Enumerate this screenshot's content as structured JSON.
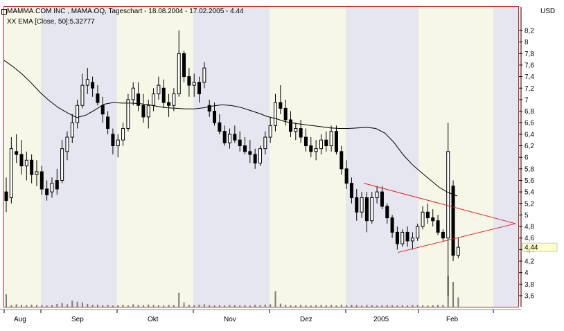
{
  "window": {
    "title_line_1": "MAMMA.COM INC    , MAMA.OQ, Tageschart - 18.08.2004 - 17.02.2005 - 4.44",
    "title_line_2": "XX EMA [Close, 50]:5.32777",
    "currency": "USD"
  },
  "colors": {
    "frame": "#d01a1a",
    "band_grey": "#e6e6f0",
    "band_cream": "#f6f7e6",
    "candle": "#000000",
    "ema": "#000000",
    "trendline": "#e02020",
    "volume": "#7a7a7a",
    "last_price_box": "#ffffcc"
  },
  "chart_data": {
    "type": "candlestick",
    "title": "MAMMA.COM INC    , MAMA.OQ, Tageschart - 18.08.2004 - 17.02.2005 - 4.44",
    "ylabel": "USD",
    "ylim": [
      3.45,
      8.45
    ],
    "y_ticks": [
      3.6,
      3.8,
      4,
      4.2,
      4.4,
      4.6,
      4.8,
      5,
      5.2,
      5.4,
      5.6,
      5.8,
      6,
      6.2,
      6.4,
      6.6,
      6.8,
      7,
      7.2,
      7.4,
      7.6,
      7.8,
      8,
      8.2
    ],
    "y_tick_labels": [
      "3,6",
      "3,8",
      "4",
      "4,2",
      "4,4",
      "4,6",
      "4,8",
      "5",
      "5,2",
      "5,4",
      "5,6",
      "5,8",
      "6",
      "6,2",
      "6,4",
      "6,6",
      "6,8",
      "7",
      "7,2",
      "7,4",
      "7,6",
      "7,8",
      "8",
      "8,2"
    ],
    "x_labels": [
      {
        "label": "Aug",
        "date": "2004-08-18"
      },
      {
        "label": "Sep",
        "date": "2004-09-01"
      },
      {
        "label": "Okt",
        "date": "2004-10-01"
      },
      {
        "label": "Nov",
        "date": "2004-11-01"
      },
      {
        "label": "Dez",
        "date": "2004-12-01"
      },
      {
        "label": "2005",
        "date": "2005-01-01"
      },
      {
        "label": "Feb",
        "date": "2005-02-01"
      }
    ],
    "last_price": 4.44,
    "last_price_label": "4,44",
    "ema_label": "XX EMA [Close, 50]:5.32777",
    "ema_last": 5.32777,
    "grid": false,
    "legend": "none",
    "series": [
      {
        "type": "ohlc",
        "ohlc": [
          [
            5.4,
            5.65,
            5.05,
            5.25
          ],
          [
            5.3,
            6.35,
            5.2,
            6.15
          ],
          [
            6.1,
            6.4,
            5.9,
            6.05
          ],
          [
            6.05,
            6.3,
            5.7,
            5.85
          ],
          [
            5.85,
            6.1,
            5.6,
            5.95
          ],
          [
            5.95,
            6.05,
            5.55,
            5.7
          ],
          [
            5.7,
            5.95,
            5.5,
            5.75
          ],
          [
            5.75,
            5.85,
            5.35,
            5.45
          ],
          [
            5.45,
            5.6,
            5.25,
            5.35
          ],
          [
            5.4,
            5.65,
            5.3,
            5.55
          ],
          [
            5.6,
            5.8,
            5.35,
            5.45
          ],
          [
            5.6,
            6.3,
            5.55,
            6.15
          ],
          [
            6.1,
            6.45,
            5.95,
            6.35
          ],
          [
            6.35,
            6.75,
            6.25,
            6.6
          ],
          [
            6.6,
            7.0,
            6.5,
            6.9
          ],
          [
            6.9,
            7.45,
            6.85,
            7.25
          ],
          [
            7.25,
            7.55,
            7.1,
            7.35
          ],
          [
            7.3,
            7.4,
            7.05,
            7.2
          ],
          [
            7.1,
            7.25,
            6.9,
            6.95
          ],
          [
            6.9,
            7.05,
            6.6,
            6.75
          ],
          [
            6.7,
            6.8,
            6.4,
            6.5
          ],
          [
            6.4,
            6.5,
            6.05,
            6.2
          ],
          [
            6.2,
            6.4,
            6.0,
            6.3
          ],
          [
            6.3,
            6.6,
            6.2,
            6.5
          ],
          [
            6.5,
            7.1,
            6.45,
            7.0
          ],
          [
            7.0,
            7.3,
            6.9,
            7.2
          ],
          [
            7.1,
            7.3,
            6.8,
            6.9
          ],
          [
            6.9,
            7.1,
            6.6,
            6.7
          ],
          [
            6.7,
            7.0,
            6.5,
            6.9
          ],
          [
            6.9,
            7.2,
            6.8,
            7.1
          ],
          [
            7.1,
            7.4,
            7.0,
            7.25
          ],
          [
            7.2,
            7.35,
            6.85,
            6.95
          ],
          [
            6.95,
            7.1,
            6.7,
            6.9
          ],
          [
            6.9,
            7.2,
            6.8,
            7.1
          ],
          [
            7.1,
            8.2,
            7.05,
            7.8
          ],
          [
            7.8,
            7.85,
            7.3,
            7.4
          ],
          [
            7.4,
            7.55,
            7.05,
            7.25
          ],
          [
            7.25,
            7.45,
            7.05,
            7.3
          ],
          [
            7.3,
            7.4,
            6.95,
            7.1
          ],
          [
            7.3,
            7.65,
            7.2,
            7.55
          ],
          [
            6.9,
            7.0,
            6.7,
            6.8
          ],
          [
            6.8,
            6.95,
            6.55,
            6.6
          ],
          [
            6.6,
            6.75,
            6.4,
            6.45
          ],
          [
            6.45,
            6.55,
            6.2,
            6.25
          ],
          [
            6.25,
            6.5,
            6.15,
            6.4
          ],
          [
            6.4,
            6.55,
            6.25,
            6.3
          ],
          [
            6.3,
            6.45,
            6.1,
            6.2
          ],
          [
            6.2,
            6.35,
            6.05,
            6.1
          ],
          [
            6.1,
            6.3,
            5.9,
            6.05
          ],
          [
            6.05,
            6.15,
            5.8,
            5.9
          ],
          [
            5.9,
            6.2,
            5.85,
            6.15
          ],
          [
            6.15,
            6.45,
            6.05,
            6.35
          ],
          [
            6.35,
            6.7,
            6.25,
            6.55
          ],
          [
            6.55,
            7.1,
            6.45,
            6.95
          ],
          [
            6.95,
            7.25,
            6.75,
            6.85
          ],
          [
            6.85,
            7.0,
            6.55,
            6.65
          ],
          [
            6.65,
            6.8,
            6.35,
            6.45
          ],
          [
            6.45,
            6.6,
            6.3,
            6.5
          ],
          [
            6.5,
            6.65,
            6.25,
            6.35
          ],
          [
            6.35,
            6.5,
            6.1,
            6.2
          ],
          [
            6.2,
            6.35,
            6.0,
            6.1
          ],
          [
            6.1,
            6.3,
            5.95,
            6.15
          ],
          [
            6.15,
            6.4,
            6.05,
            6.3
          ],
          [
            6.3,
            6.45,
            6.1,
            6.2
          ],
          [
            6.2,
            6.55,
            6.1,
            6.45
          ],
          [
            6.45,
            6.55,
            6.05,
            6.1
          ],
          [
            6.1,
            6.2,
            5.7,
            5.8
          ],
          [
            5.8,
            5.95,
            5.45,
            5.55
          ],
          [
            5.55,
            5.65,
            5.2,
            5.3
          ],
          [
            5.3,
            5.45,
            4.9,
            5.05
          ],
          [
            5.05,
            5.4,
            4.95,
            5.3
          ],
          [
            5.3,
            5.4,
            4.7,
            4.9
          ],
          [
            4.9,
            5.4,
            4.85,
            5.3
          ],
          [
            5.3,
            5.5,
            5.2,
            5.4
          ],
          [
            5.4,
            5.5,
            5.1,
            5.15
          ],
          [
            5.15,
            5.2,
            4.85,
            4.95
          ],
          [
            4.95,
            5.0,
            4.6,
            4.7
          ],
          [
            4.7,
            4.8,
            4.4,
            4.5
          ],
          [
            4.5,
            4.75,
            4.45,
            4.7
          ],
          [
            4.7,
            4.8,
            4.45,
            4.55
          ],
          [
            4.55,
            4.7,
            4.4,
            4.6
          ],
          [
            4.6,
            4.85,
            4.55,
            4.8
          ],
          [
            4.8,
            5.15,
            4.75,
            5.05
          ],
          [
            5.05,
            5.2,
            4.85,
            4.95
          ],
          [
            4.95,
            5.1,
            4.8,
            4.9
          ],
          [
            4.9,
            5.0,
            4.65,
            4.7
          ],
          [
            4.7,
            4.75,
            4.55,
            4.6
          ],
          [
            4.6,
            6.6,
            3.6,
            6.1
          ],
          [
            5.5,
            5.6,
            4.2,
            4.3
          ],
          [
            4.3,
            4.6,
            4.25,
            4.44
          ]
        ]
      },
      {
        "name": "XX EMA [Close, 50]",
        "type": "line",
        "values": [
          7.68,
          7.57,
          7.44,
          7.29,
          7.12,
          6.98,
          6.86,
          6.77,
          6.69,
          6.73,
          6.82,
          6.92,
          6.95,
          6.94,
          6.94,
          6.93,
          6.91,
          6.88,
          6.86,
          6.85,
          6.84,
          6.84,
          6.86,
          6.89,
          6.91,
          6.9,
          6.87,
          6.82,
          6.77,
          6.71,
          6.67,
          6.62,
          6.59,
          6.57,
          6.55,
          6.53,
          6.51,
          6.5,
          6.5,
          6.51,
          6.52,
          6.5,
          6.42,
          6.26,
          6.05,
          5.88,
          5.74,
          5.61,
          5.48,
          5.39,
          5.33
        ]
      }
    ],
    "volume": [
      0.4,
      0.05,
      0.08,
      0.06,
      0.05,
      0.07,
      0.06,
      0.05,
      0.04,
      0.05,
      0.09,
      0.12,
      0.08,
      0.2,
      0.16,
      0.14,
      0.09,
      0.06,
      0.07,
      0.05,
      0.06,
      0.04,
      0.05,
      0.06,
      0.04,
      0.08,
      0.06,
      0.05,
      0.07,
      0.06,
      0.05,
      0.04,
      0.06,
      0.05,
      0.45,
      0.14,
      0.06,
      0.05,
      0.07,
      0.08,
      0.05,
      0.04,
      0.05,
      0.04,
      0.06,
      0.05,
      0.04,
      0.05,
      0.04,
      0.06,
      0.05,
      0.07,
      0.08,
      0.5,
      0.1,
      0.06,
      0.05,
      0.04,
      0.06,
      0.05,
      0.04,
      0.05,
      0.06,
      0.05,
      0.06,
      0.04,
      0.07,
      0.05,
      0.06,
      0.05,
      0.04,
      0.06,
      0.05,
      0.04,
      0.05,
      0.06,
      0.05,
      0.04,
      0.05,
      0.04,
      0.05,
      0.06,
      0.05,
      0.04,
      0.05,
      0.06,
      0.06,
      1.0,
      0.8,
      0.3
    ]
  }
}
